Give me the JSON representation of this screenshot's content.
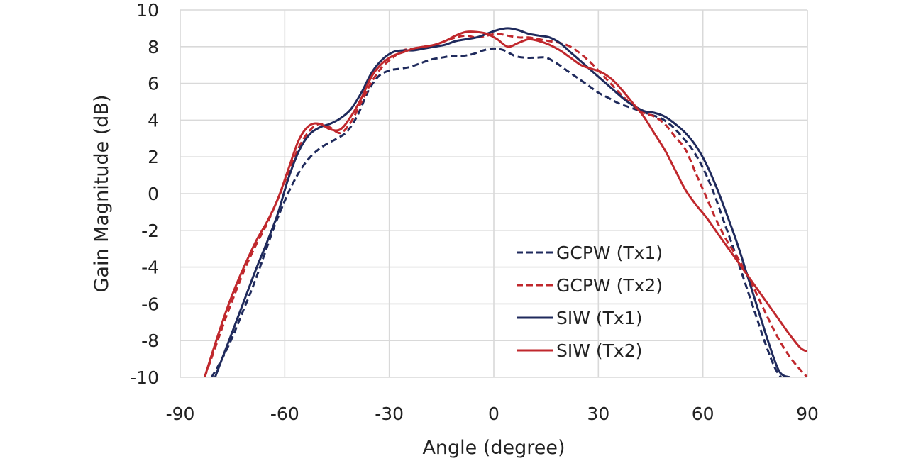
{
  "chart_data": {
    "type": "line",
    "title": "",
    "xlabel": "Angle (degree)",
    "ylabel": "Gain Magnitude (dB)",
    "xlim": [
      -90,
      90
    ],
    "ylim": [
      -10,
      10
    ],
    "xticks": [
      -90,
      -60,
      -30,
      0,
      30,
      60,
      90
    ],
    "yticks": [
      -10,
      -8,
      -6,
      -4,
      -2,
      0,
      2,
      4,
      6,
      8,
      10
    ],
    "grid": true,
    "legend_position": "bottom-right",
    "series": [
      {
        "name": "GCPW (Tx1)",
        "color": "#1f2a5c",
        "dash": "dashed",
        "x": [
          -81,
          -78,
          -75,
          -72,
          -69,
          -66,
          -63,
          -60,
          -57,
          -54,
          -51,
          -48,
          -45,
          -42,
          -39,
          -36,
          -33,
          -30,
          -27,
          -24,
          -21,
          -18,
          -15,
          -12,
          -9,
          -6,
          -3,
          0,
          3,
          6,
          9,
          12,
          15,
          18,
          21,
          24,
          27,
          30,
          33,
          36,
          39,
          42,
          45,
          48,
          51,
          54,
          57,
          60,
          63,
          66,
          69,
          72,
          75,
          78,
          81,
          84,
          87,
          90
        ],
        "y": [
          -10,
          -9.0,
          -7.8,
          -6.4,
          -5.0,
          -3.4,
          -1.8,
          -0.4,
          0.8,
          1.7,
          2.3,
          2.7,
          3.0,
          3.4,
          4.3,
          5.6,
          6.4,
          6.7,
          6.8,
          6.9,
          7.1,
          7.3,
          7.4,
          7.5,
          7.5,
          7.6,
          7.8,
          7.9,
          7.8,
          7.5,
          7.4,
          7.4,
          7.4,
          7.1,
          6.7,
          6.3,
          5.9,
          5.5,
          5.2,
          4.9,
          4.7,
          4.5,
          4.3,
          4.1,
          3.7,
          3.1,
          2.4,
          1.4,
          0.1,
          -1.5,
          -3.1,
          -4.8,
          -6.5,
          -8.2,
          -9.6,
          -10.3,
          -10.7,
          -11
        ]
      },
      {
        "name": "GCPW (Tx2)",
        "color": "#c0282d",
        "dash": "dashed",
        "x": [
          -83,
          -80,
          -77,
          -74,
          -71,
          -68,
          -65,
          -62,
          -59,
          -56,
          -53,
          -50,
          -47,
          -44,
          -41,
          -38,
          -35,
          -32,
          -29,
          -26,
          -23,
          -20,
          -17,
          -14,
          -11,
          -8,
          -5,
          -2,
          1,
          4,
          7,
          10,
          13,
          16,
          19,
          22,
          25,
          28,
          31,
          34,
          37,
          40,
          43,
          46,
          49,
          52,
          55,
          58,
          61,
          64,
          67,
          70,
          73,
          76,
          79,
          82,
          85,
          88,
          90
        ],
        "y": [
          -10,
          -8.4,
          -6.8,
          -5.3,
          -3.9,
          -2.7,
          -1.6,
          -0.3,
          1.1,
          2.5,
          3.4,
          3.8,
          3.6,
          3.3,
          3.9,
          5.0,
          6.1,
          6.9,
          7.4,
          7.8,
          7.9,
          8.0,
          8.1,
          8.3,
          8.5,
          8.6,
          8.5,
          8.6,
          8.7,
          8.6,
          8.5,
          8.5,
          8.4,
          8.3,
          8.2,
          8.0,
          7.6,
          7.1,
          6.5,
          5.9,
          5.3,
          4.8,
          4.4,
          4.2,
          3.8,
          3.1,
          2.4,
          1.1,
          -0.2,
          -1.5,
          -2.6,
          -3.5,
          -4.5,
          -5.7,
          -6.9,
          -8.0,
          -8.9,
          -9.6,
          -10
        ]
      },
      {
        "name": "SIW (Tx1)",
        "color": "#1f2a5c",
        "dash": "solid",
        "x": [
          -80,
          -77,
          -74,
          -71,
          -68,
          -65,
          -62,
          -59,
          -56,
          -53,
          -50,
          -47,
          -44,
          -41,
          -38,
          -35,
          -32,
          -29,
          -26,
          -23,
          -20,
          -17,
          -14,
          -11,
          -8,
          -5,
          -2,
          1,
          4,
          7,
          10,
          13,
          16,
          19,
          22,
          25,
          28,
          31,
          34,
          37,
          40,
          43,
          46,
          49,
          52,
          55,
          58,
          61,
          64,
          67,
          70,
          73,
          76,
          79,
          82,
          85
        ],
        "y": [
          -10,
          -8.5,
          -7.0,
          -5.5,
          -4.0,
          -2.6,
          -1.1,
          0.8,
          2.3,
          3.2,
          3.6,
          3.8,
          4.1,
          4.6,
          5.5,
          6.6,
          7.3,
          7.7,
          7.8,
          7.8,
          7.9,
          8.0,
          8.1,
          8.3,
          8.4,
          8.5,
          8.7,
          8.9,
          9.0,
          8.9,
          8.7,
          8.6,
          8.5,
          8.2,
          7.7,
          7.2,
          6.7,
          6.2,
          5.7,
          5.2,
          4.8,
          4.5,
          4.4,
          4.2,
          3.8,
          3.3,
          2.6,
          1.6,
          0.3,
          -1.2,
          -2.8,
          -4.6,
          -6.4,
          -8.2,
          -9.7,
          -10
        ]
      },
      {
        "name": "SIW (Tx2)",
        "color": "#c0282d",
        "dash": "solid",
        "x": [
          -83,
          -80,
          -77,
          -74,
          -71,
          -68,
          -65,
          -62,
          -59,
          -56,
          -53,
          -50,
          -47,
          -44,
          -41,
          -38,
          -35,
          -32,
          -29,
          -26,
          -23,
          -20,
          -17,
          -14,
          -11,
          -8,
          -5,
          -2,
          1,
          4,
          7,
          10,
          13,
          16,
          19,
          22,
          25,
          28,
          31,
          34,
          37,
          40,
          43,
          46,
          49,
          52,
          55,
          58,
          61,
          64,
          67,
          70,
          73,
          76,
          79,
          82,
          85,
          88,
          90
        ],
        "y": [
          -10,
          -8.2,
          -6.5,
          -5.0,
          -3.7,
          -2.5,
          -1.5,
          -0.3,
          1.3,
          2.9,
          3.7,
          3.8,
          3.5,
          3.5,
          4.2,
          5.2,
          6.4,
          7.1,
          7.5,
          7.7,
          7.9,
          8.0,
          8.1,
          8.3,
          8.6,
          8.8,
          8.8,
          8.7,
          8.4,
          8.0,
          8.2,
          8.4,
          8.3,
          8.1,
          7.8,
          7.4,
          7.0,
          6.8,
          6.6,
          6.2,
          5.6,
          4.9,
          4.2,
          3.3,
          2.4,
          1.3,
          0.2,
          -0.6,
          -1.3,
          -2.1,
          -2.9,
          -3.7,
          -4.5,
          -5.3,
          -6.1,
          -6.9,
          -7.7,
          -8.4,
          -8.6
        ]
      }
    ]
  }
}
